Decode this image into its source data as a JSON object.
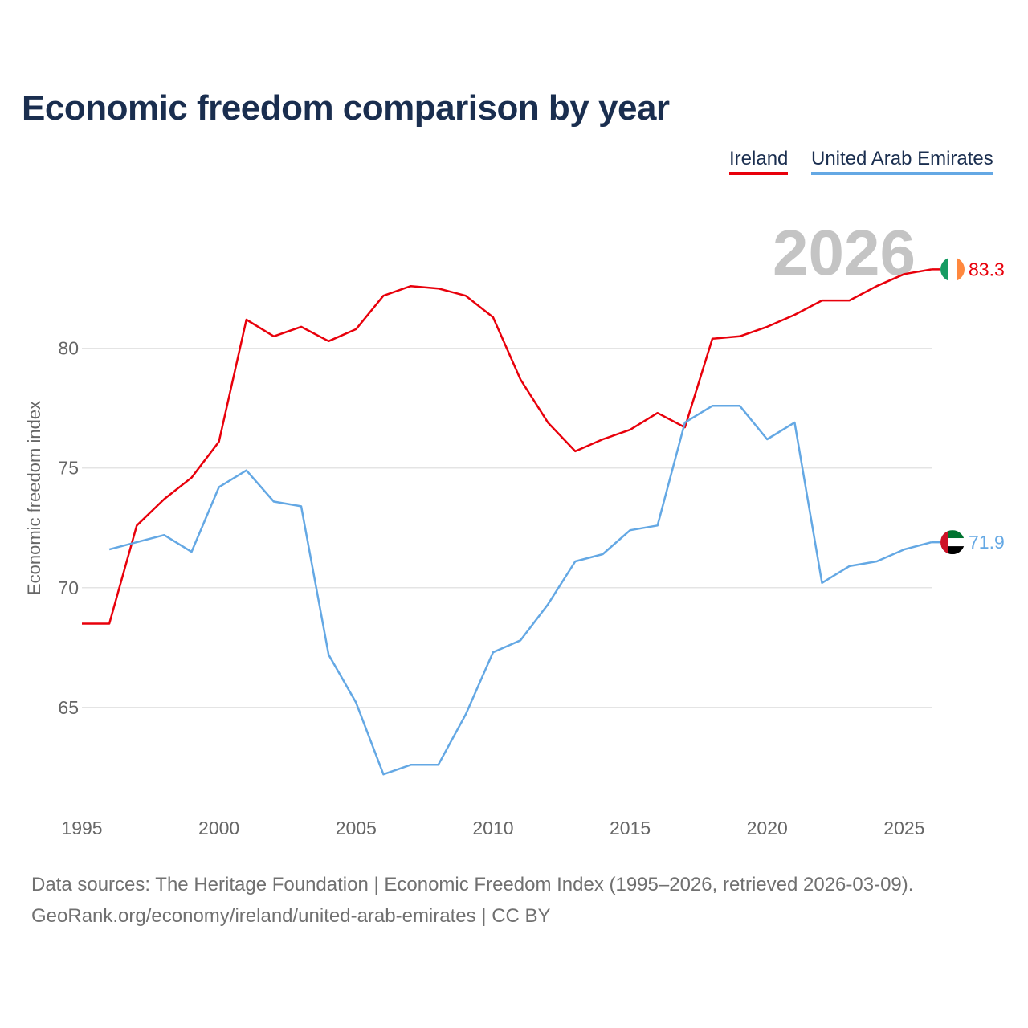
{
  "title": "Economic freedom comparison by year",
  "legend": [
    {
      "label": "Ireland",
      "color": "#e8000b"
    },
    {
      "label": "United Arab Emirates",
      "color": "#64a8e4"
    }
  ],
  "current_year_label": "2026",
  "sources": {
    "line1": "Data sources: The Heritage Foundation | Economic Freedom Index (1995–2026, retrieved 2026-03-09).",
    "line2": "GeoRank.org/economy/ireland/united-arab-emirates | CC BY"
  },
  "chart_data": {
    "type": "line",
    "title": "Economic freedom comparison by year",
    "xlabel": "",
    "ylabel": "Economic freedom index",
    "xlim": [
      1995,
      2026
    ],
    "ylim": [
      61,
      86.5
    ],
    "x_ticks": [
      1995,
      2000,
      2005,
      2010,
      2015,
      2020,
      2025
    ],
    "y_ticks": [
      65,
      70,
      75,
      80
    ],
    "grid": true,
    "legend_position": "top-right",
    "series": [
      {
        "name": "Ireland",
        "color": "#e8000b",
        "end_label": "83.3",
        "x": [
          1995,
          1996,
          1997,
          1998,
          1999,
          2000,
          2001,
          2002,
          2003,
          2004,
          2005,
          2006,
          2007,
          2008,
          2009,
          2010,
          2011,
          2012,
          2013,
          2014,
          2015,
          2016,
          2017,
          2018,
          2019,
          2020,
          2021,
          2022,
          2023,
          2024,
          2025,
          2026
        ],
        "values": [
          68.5,
          68.5,
          72.6,
          73.7,
          74.6,
          76.1,
          81.2,
          80.5,
          80.9,
          80.3,
          80.8,
          82.2,
          82.6,
          82.5,
          82.2,
          81.3,
          78.7,
          76.9,
          75.7,
          76.2,
          76.6,
          77.3,
          76.7,
          80.4,
          80.5,
          80.9,
          81.4,
          82.0,
          82.0,
          82.6,
          83.1,
          83.3
        ]
      },
      {
        "name": "United Arab Emirates",
        "color": "#64a8e4",
        "end_label": "71.9",
        "x": [
          1996,
          1997,
          1998,
          1999,
          2000,
          2001,
          2002,
          2003,
          2004,
          2005,
          2006,
          2007,
          2008,
          2009,
          2010,
          2011,
          2012,
          2013,
          2014,
          2015,
          2016,
          2017,
          2018,
          2019,
          2020,
          2021,
          2022,
          2023,
          2024,
          2025,
          2026
        ],
        "values": [
          71.6,
          71.9,
          72.2,
          71.5,
          74.2,
          74.9,
          73.6,
          73.4,
          67.2,
          65.2,
          62.2,
          62.6,
          62.6,
          64.7,
          67.3,
          67.8,
          69.3,
          71.1,
          71.4,
          72.4,
          72.6,
          76.9,
          77.6,
          77.6,
          76.2,
          76.9,
          70.2,
          70.9,
          71.1,
          71.6,
          71.9
        ]
      }
    ]
  }
}
